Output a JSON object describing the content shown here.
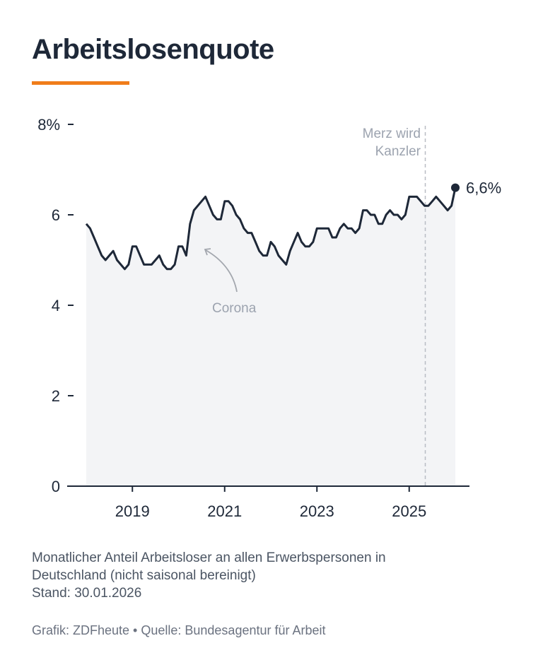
{
  "title": "Arbeitslosenquote",
  "colors": {
    "accent": "#f07d1a",
    "line": "#1e2838",
    "area": "#f3f4f6",
    "annotation": "#9ca3af"
  },
  "chart_data": {
    "type": "line",
    "title": "Arbeitslosenquote",
    "x_start": "2018-01",
    "x_end": "2026-01",
    "frequency": "monthly",
    "x_ticks": [
      "2019",
      "2021",
      "2023",
      "2025"
    ],
    "y_ticks": [
      "0",
      "2",
      "4",
      "6",
      "8%"
    ],
    "ylim": [
      0,
      8
    ],
    "grid": false,
    "area_fill": true,
    "values": [
      5.8,
      5.7,
      5.5,
      5.3,
      5.1,
      5.0,
      5.1,
      5.2,
      5.0,
      4.9,
      4.8,
      4.9,
      5.3,
      5.3,
      5.1,
      4.9,
      4.9,
      4.9,
      5.0,
      5.1,
      4.9,
      4.8,
      4.8,
      4.9,
      5.3,
      5.3,
      5.1,
      5.8,
      6.1,
      6.2,
      6.3,
      6.4,
      6.2,
      6.0,
      5.9,
      5.9,
      6.3,
      6.3,
      6.2,
      6.0,
      5.9,
      5.7,
      5.6,
      5.6,
      5.4,
      5.2,
      5.1,
      5.1,
      5.4,
      5.3,
      5.1,
      5.0,
      4.9,
      5.2,
      5.4,
      5.6,
      5.4,
      5.3,
      5.3,
      5.4,
      5.7,
      5.7,
      5.7,
      5.7,
      5.5,
      5.5,
      5.7,
      5.8,
      5.7,
      5.7,
      5.6,
      5.7,
      6.1,
      6.1,
      6.0,
      6.0,
      5.8,
      5.8,
      6.0,
      6.1,
      6.0,
      6.0,
      5.9,
      6.0,
      6.4,
      6.4,
      6.4,
      6.3,
      6.2,
      6.2,
      6.3,
      6.4,
      6.3,
      6.2,
      6.1,
      6.2,
      6.6
    ],
    "last_value_label": "6,6%",
    "annotations": [
      {
        "text_lines": [
          "Merz wird",
          "Kanzler"
        ],
        "type": "vertical-dashed-line",
        "x": "2025-05"
      },
      {
        "text": "Corona",
        "type": "arrow",
        "x": "2020-04"
      }
    ]
  },
  "footer": {
    "description_lines": [
      "Monatlicher Anteil Arbeitsloser an allen Erwerbspersonen in",
      "Deutschland (nicht saisonal bereinigt)",
      "Stand: 30.01.2026"
    ],
    "credit": "Grafik: ZDFheute • Quelle: Bundesagentur für Arbeit"
  }
}
